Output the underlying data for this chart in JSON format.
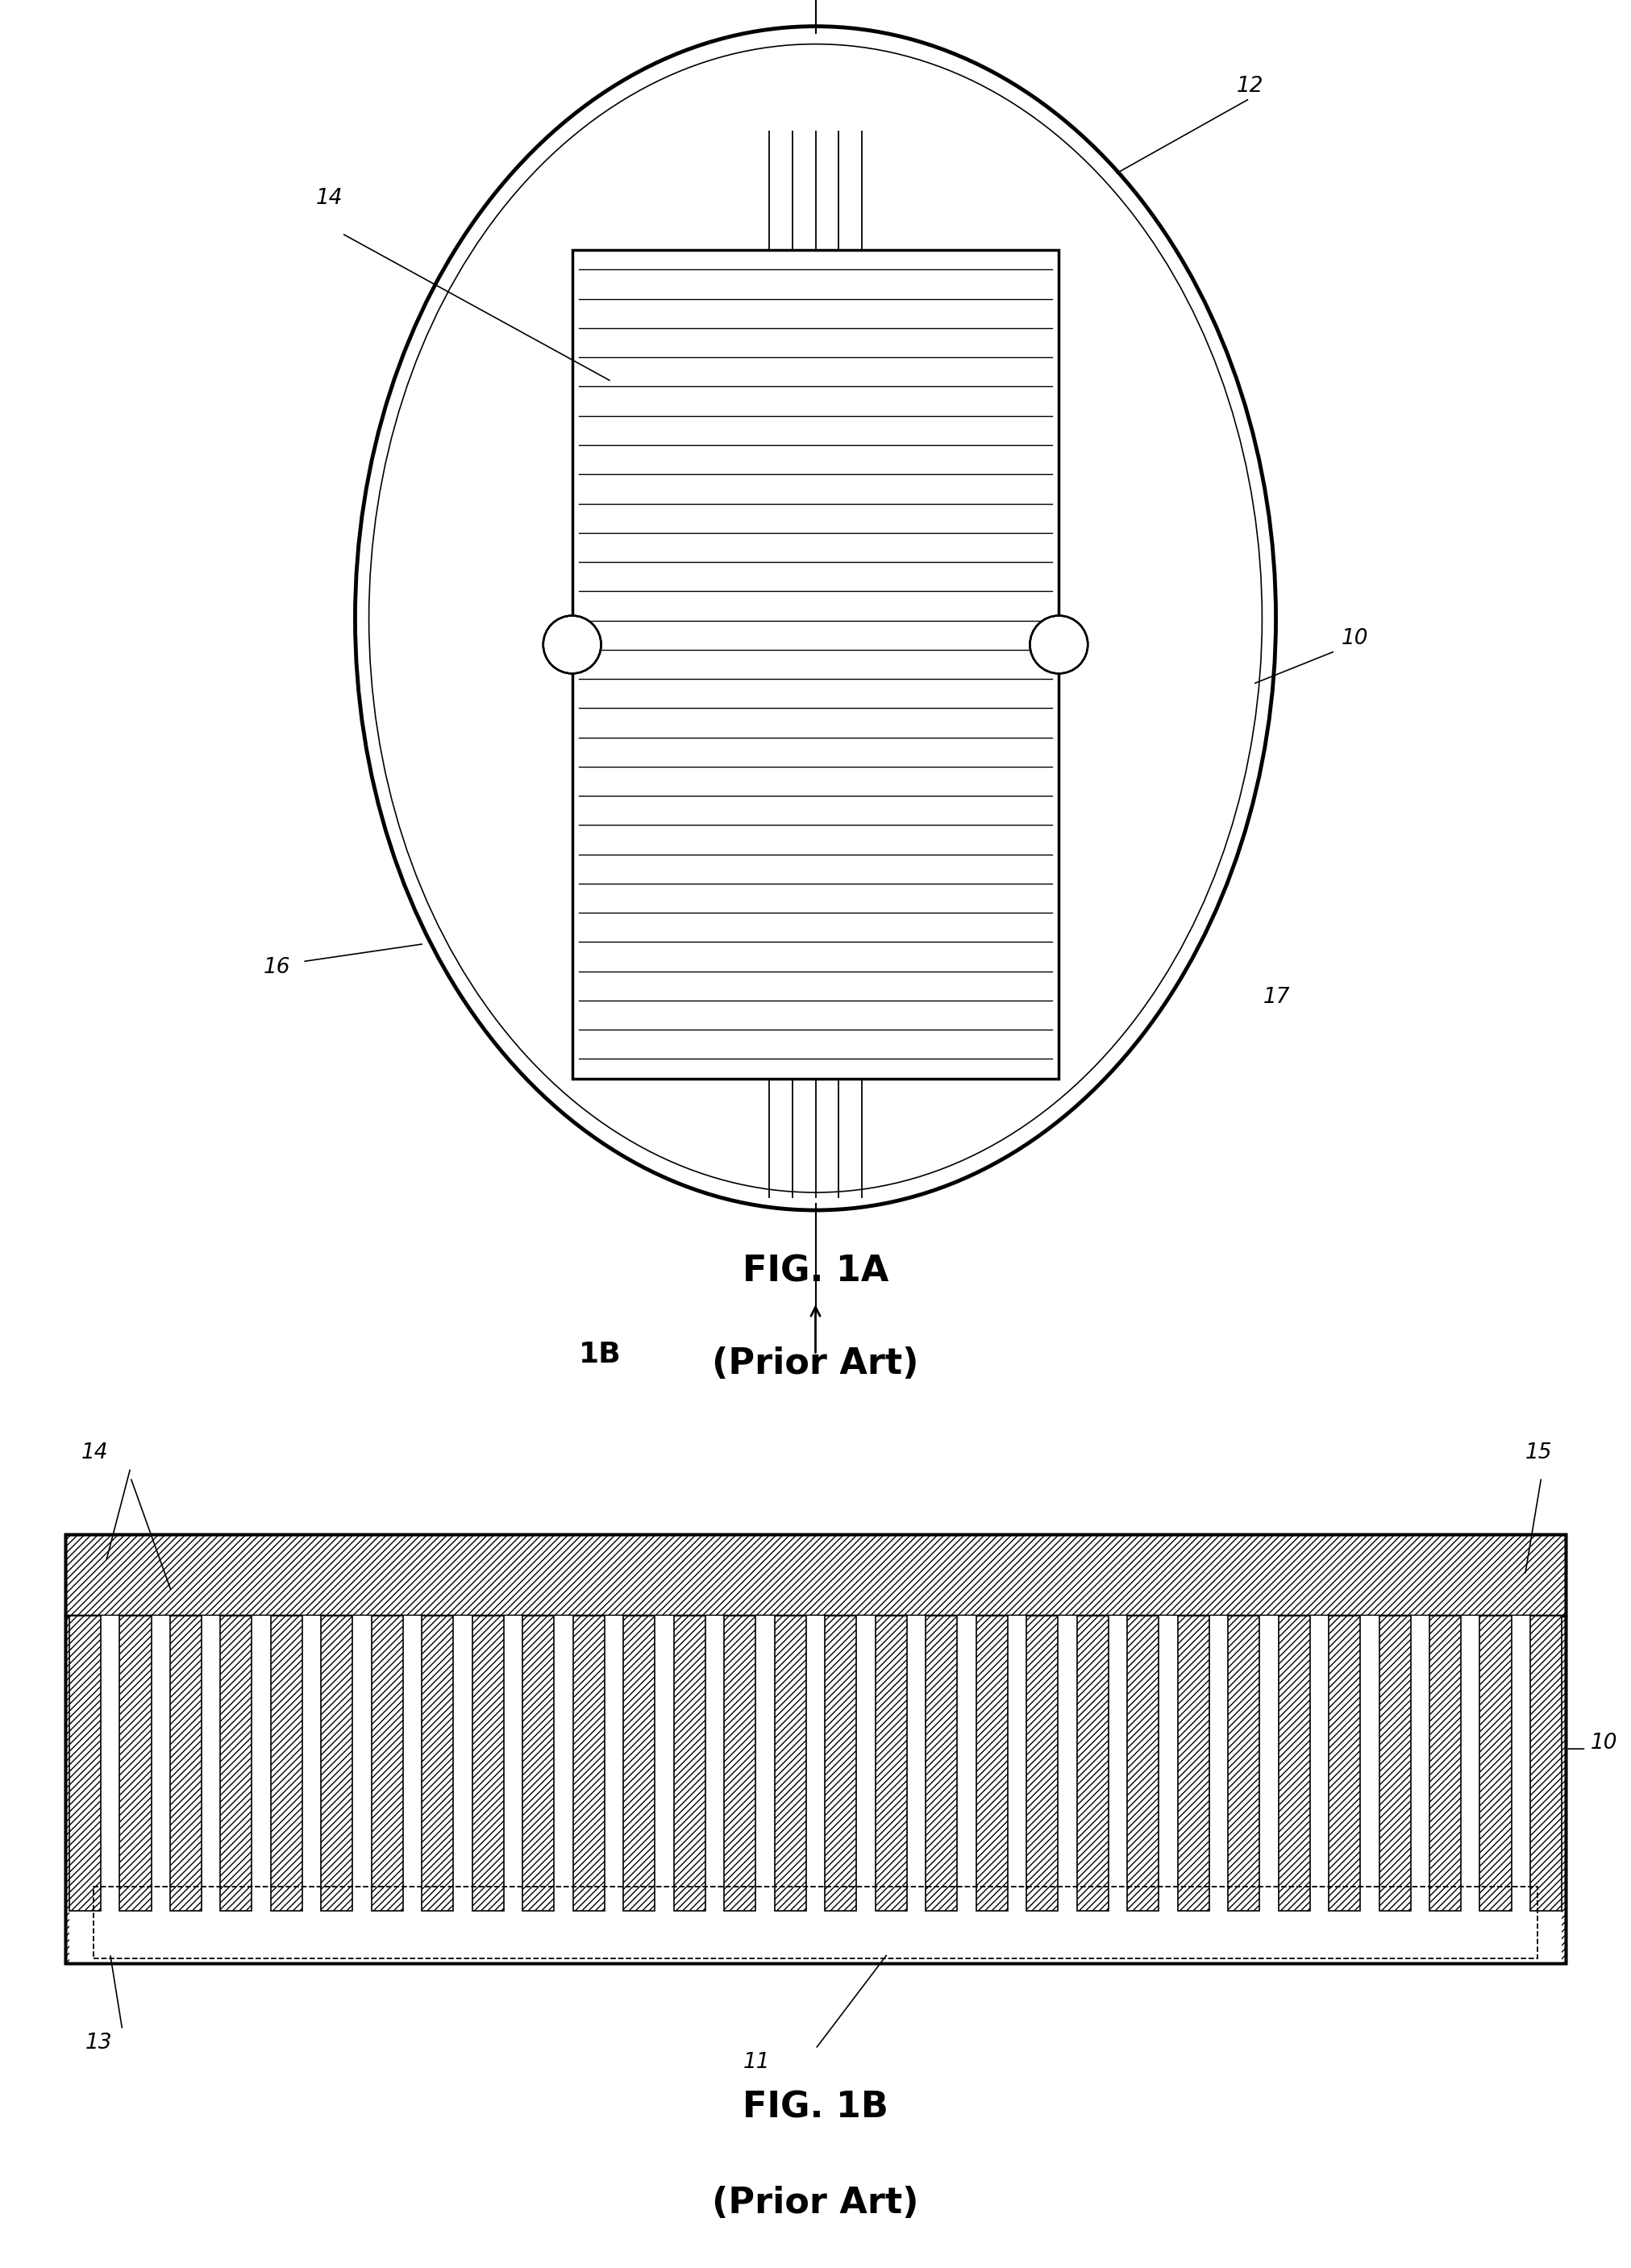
{
  "fig_width": 20.23,
  "fig_height": 28.13,
  "background_color": "#ffffff",
  "fig1a": {
    "title": "FIG. 1A",
    "subtitle": "(Prior Art)",
    "title_fontsize": 32,
    "title_fontweight": "bold"
  },
  "fig1b": {
    "title": "FIG. 1B",
    "subtitle": "(Prior Art)",
    "title_fontsize": 32,
    "title_fontweight": "bold"
  }
}
